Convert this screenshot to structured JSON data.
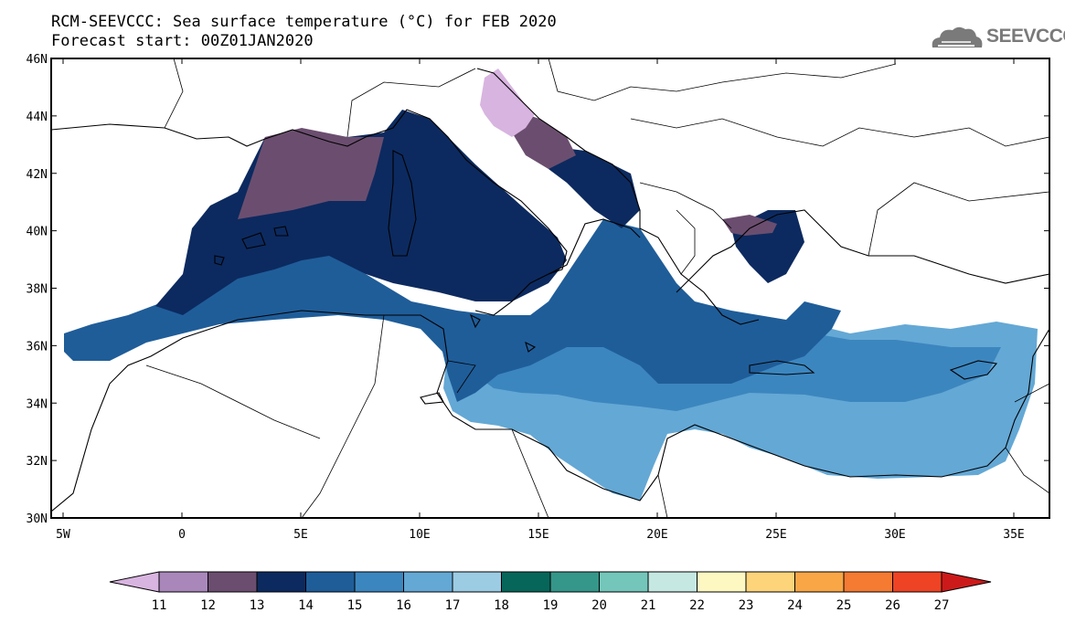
{
  "title_line1": "RCM-SEEVCCC: Sea surface temperature (°C) for FEB 2020",
  "title_line2": "Forecast start: 00Z01JAN2020",
  "logo": {
    "text": "SEEVCCC",
    "icon": "cloud-logo-icon"
  },
  "map": {
    "lon_labels": [
      "5W",
      "0",
      "5E",
      "10E",
      "15E",
      "20E",
      "25E",
      "30E",
      "35E"
    ],
    "lon_values": [
      -5,
      0,
      5,
      10,
      15,
      20,
      25,
      30,
      35
    ],
    "lat_labels": [
      "46N",
      "44N",
      "42N",
      "40N",
      "38N",
      "36N",
      "34N",
      "32N",
      "30N"
    ],
    "lat_values": [
      46,
      44,
      42,
      40,
      38,
      36,
      34,
      32,
      30
    ],
    "lon_range": [
      -5.5,
      36.5
    ],
    "lat_range": [
      30,
      46
    ]
  },
  "colorbar": {
    "labels": [
      "11",
      "12",
      "13",
      "14",
      "15",
      "16",
      "17",
      "18",
      "19",
      "20",
      "21",
      "22",
      "23",
      "24",
      "25",
      "26",
      "27"
    ],
    "colors": [
      "#d8b4e0",
      "#a987bb",
      "#6b4e6f",
      "#0c2a5f",
      "#1f5d99",
      "#3c86bf",
      "#64a8d5",
      "#9ccbe4",
      "#06665a",
      "#35968a",
      "#74c6ba",
      "#c5e8e2",
      "#fdf8c2",
      "#fdd47a",
      "#f9a646",
      "#f57a32",
      "#ee4324",
      "#cc1a1a"
    ]
  }
}
